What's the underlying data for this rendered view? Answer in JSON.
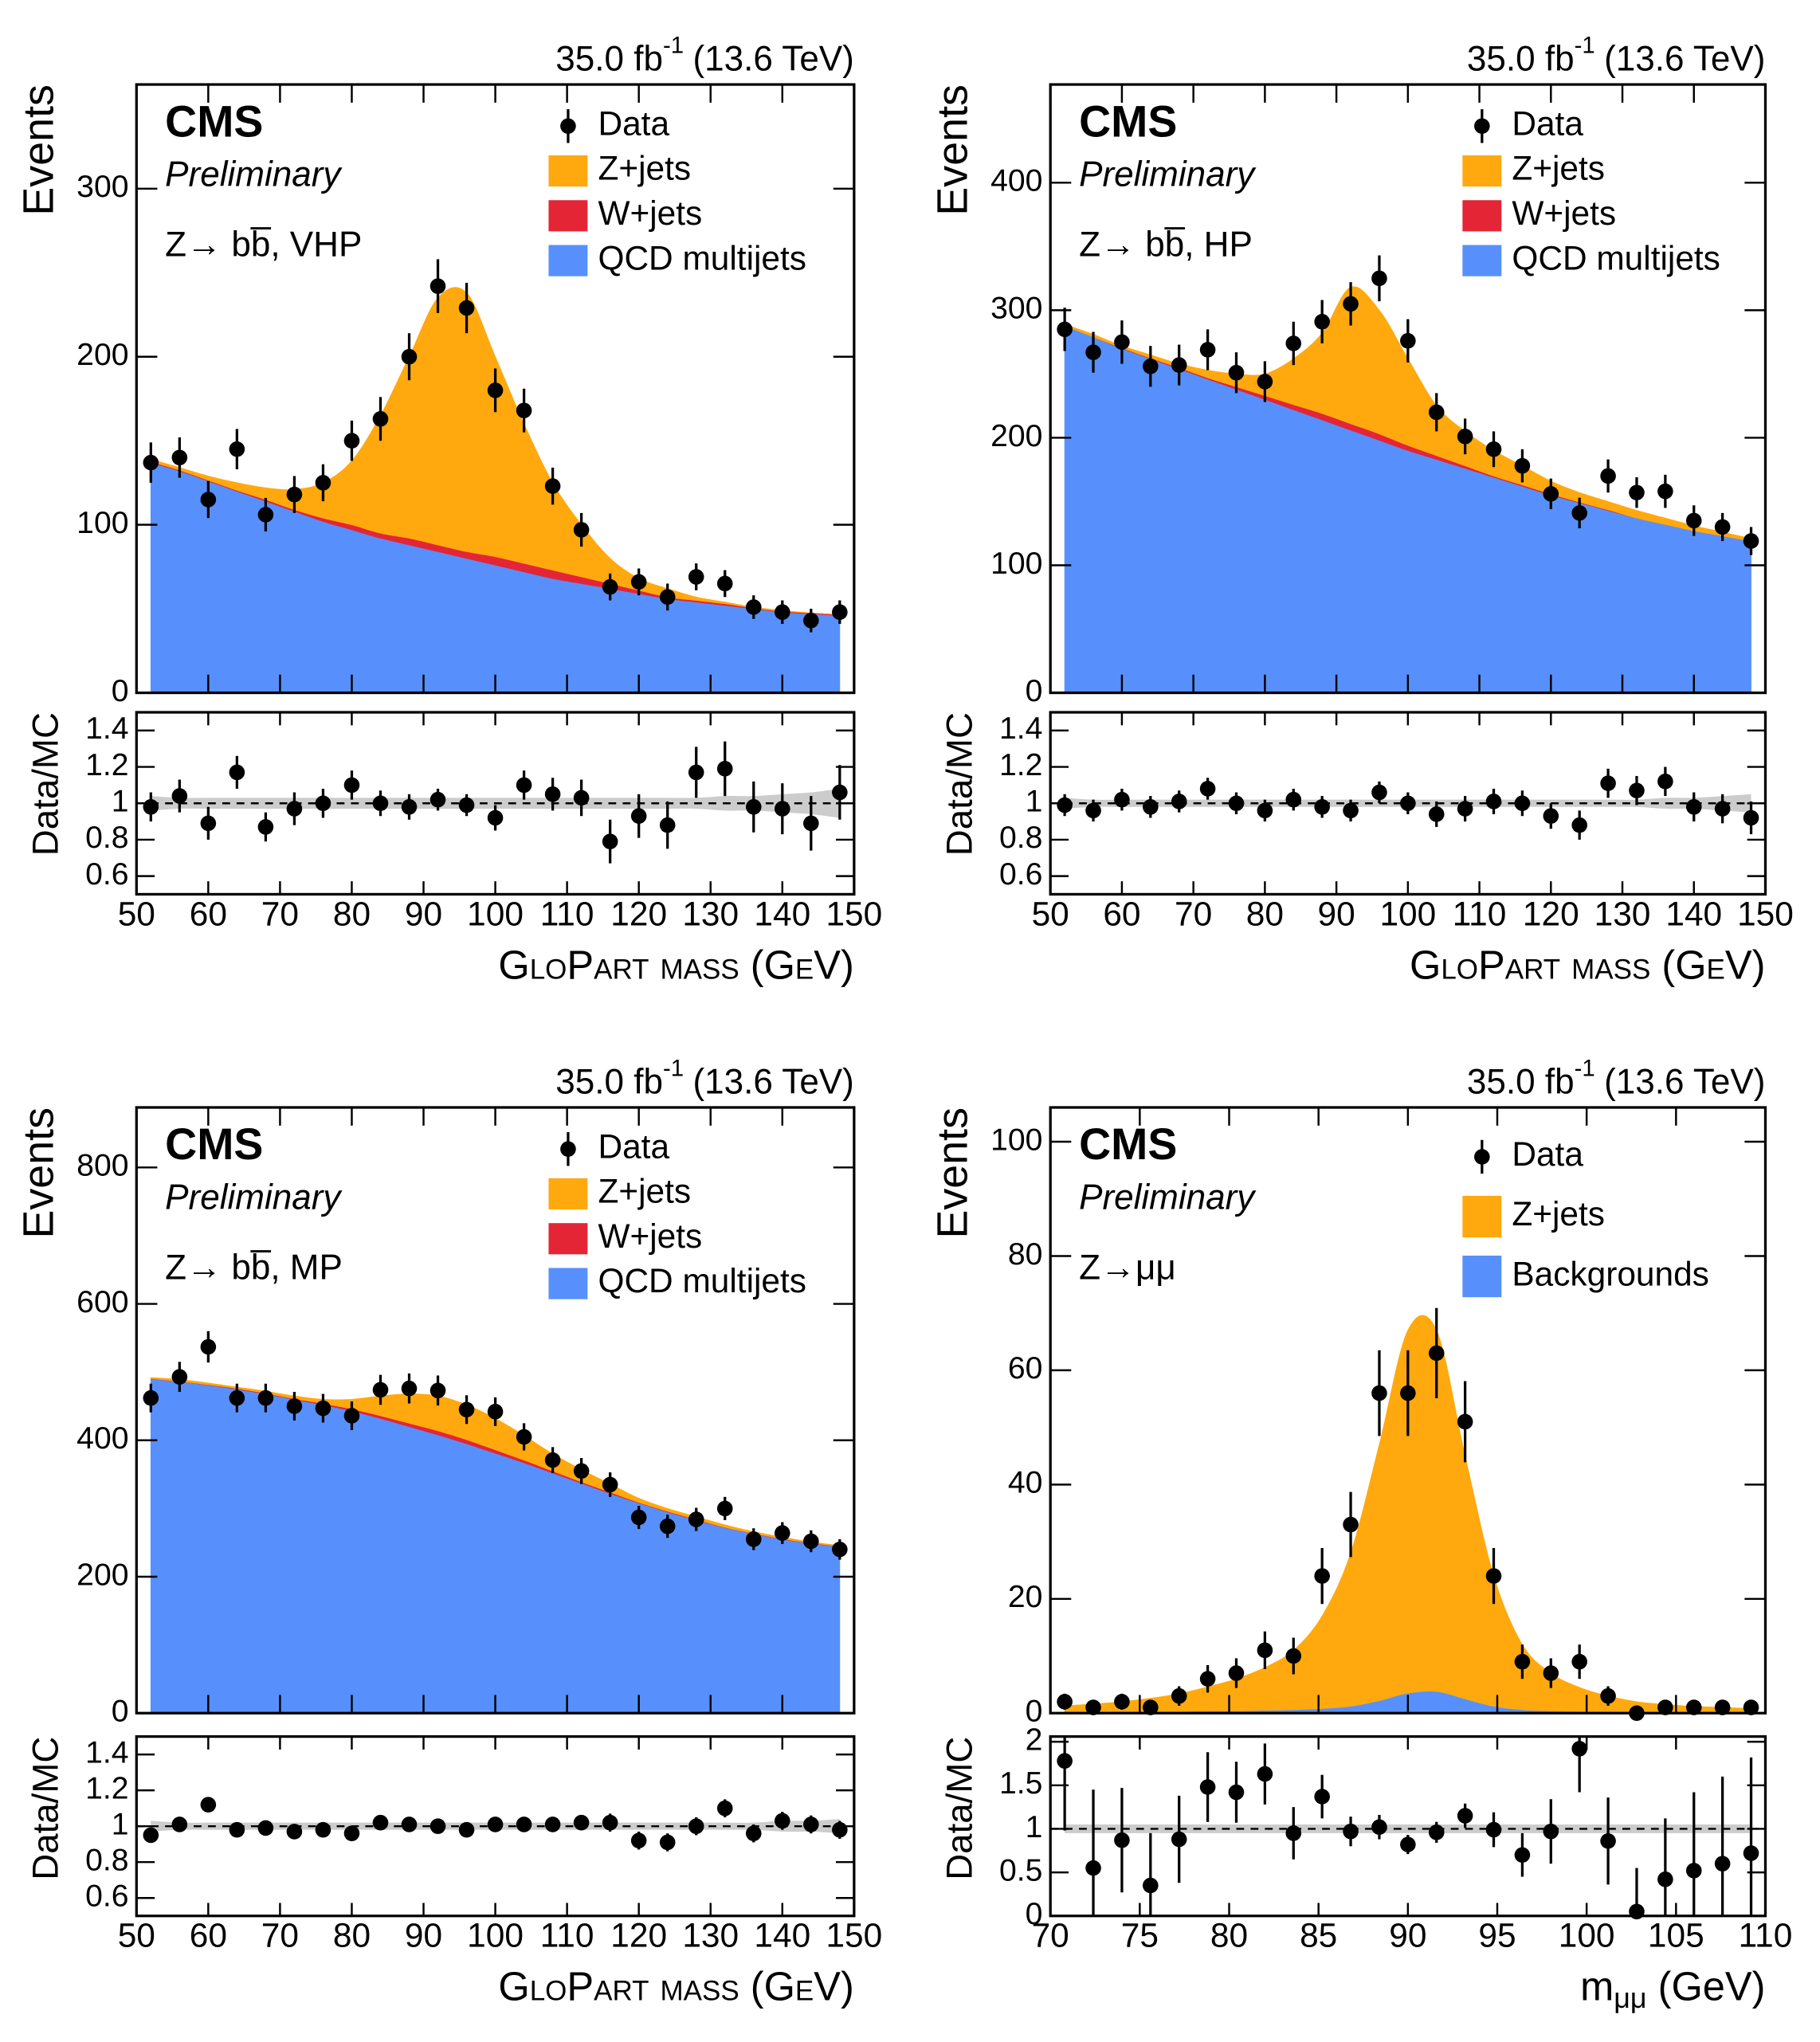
{
  "chart_data": [
    {
      "type": "stacked_area",
      "lumi": "35.0 fb",
      "lumi_sup": "-1",
      "energy": "(13.6 TeV)",
      "experiment": "CMS",
      "status": "Preliminary",
      "label": "Z→ bb̅, VHP",
      "ylabel": "Events",
      "xlabel": "GloPart mass (GeV)",
      "xlim": [
        50,
        150
      ],
      "xticks": [
        50,
        60,
        70,
        80,
        90,
        100,
        110,
        120,
        130,
        140,
        150
      ],
      "ylim": [
        0,
        362
      ],
      "yticks": [
        0,
        100,
        200,
        300
      ],
      "data": {
        "name": "Data",
        "color": "#000000",
        "x": [
          52,
          56,
          60,
          64,
          68,
          72,
          76,
          80,
          84,
          88,
          92,
          96,
          100,
          104,
          108,
          112,
          116,
          120,
          124,
          128,
          132,
          136,
          140,
          144,
          148
        ],
        "values": [
          137,
          140,
          115,
          145,
          106,
          118,
          125,
          150,
          163,
          200,
          242,
          229,
          180,
          168,
          123,
          97,
          63,
          66,
          57,
          69,
          65,
          51,
          48,
          43,
          48
        ],
        "errors": [
          12,
          12,
          11,
          12,
          10,
          11,
          11,
          12,
          13,
          14,
          16,
          15,
          13,
          13,
          11,
          10,
          8,
          8,
          8,
          8,
          8,
          7,
          7,
          7,
          7
        ]
      },
      "series": [
        {
          "name": "QCD multijets",
          "color": "#5790fc",
          "values": [
            137,
            132,
            126,
            120,
            114,
            108,
            102,
            97,
            92,
            88,
            84,
            80,
            76,
            72,
            68,
            65,
            62,
            59,
            56,
            54,
            52,
            50,
            48,
            47,
            46
          ]
        },
        {
          "name": "W+jets",
          "color": "#e42536",
          "values": [
            0.5,
            0.5,
            0.5,
            0.5,
            1,
            1,
            2,
            3,
            3,
            4,
            4,
            4,
            5,
            5,
            5,
            4,
            3,
            2,
            1,
            1,
            1,
            0.5,
            0.5,
            0.5,
            0.5
          ]
        },
        {
          "name": "Z+jets",
          "color": "#ffa90e",
          "values": [
            1.5,
            1.5,
            2.5,
            4.5,
            7,
            12,
            21,
            38,
            70,
            108,
            147,
            154,
            119,
            83,
            52,
            31,
            15,
            7,
            5,
            2,
            1,
            0.5,
            0.5,
            0,
            0
          ]
        }
      ],
      "ratio": {
        "ylabel": "Data/MC",
        "ylim": [
          0.5,
          1.5
        ],
        "yticks": [
          0.6,
          0.8,
          1,
          1.2,
          1.4
        ],
        "reference": 1,
        "band_color": "#cccccc",
        "values": [
          0.98,
          1.04,
          0.89,
          1.17,
          0.87,
          0.97,
          1.0,
          1.1,
          1.0,
          0.98,
          1.02,
          0.99,
          0.92,
          1.1,
          1.05,
          1.03,
          0.79,
          0.93,
          0.88,
          1.17,
          1.19,
          0.98,
          0.97,
          0.89,
          1.06
        ],
        "errors": [
          0.08,
          0.09,
          0.09,
          0.09,
          0.08,
          0.09,
          0.08,
          0.08,
          0.07,
          0.07,
          0.06,
          0.06,
          0.07,
          0.08,
          0.09,
          0.1,
          0.12,
          0.12,
          0.13,
          0.14,
          0.15,
          0.14,
          0.14,
          0.15,
          0.15
        ],
        "band": [
          0.04,
          0.03,
          0.03,
          0.03,
          0.03,
          0.03,
          0.03,
          0.03,
          0.03,
          0.03,
          0.03,
          0.03,
          0.03,
          0.03,
          0.03,
          0.03,
          0.03,
          0.03,
          0.03,
          0.03,
          0.04,
          0.04,
          0.05,
          0.06,
          0.08
        ]
      }
    },
    {
      "type": "stacked_area",
      "lumi": "35.0 fb",
      "lumi_sup": "-1",
      "energy": "(13.6 TeV)",
      "experiment": "CMS",
      "status": "Preliminary",
      "label": "Z→ bb̅, HP",
      "ylabel": "Events",
      "xlabel": "GloPart mass (GeV)",
      "xlim": [
        50,
        150
      ],
      "xticks": [
        50,
        60,
        70,
        80,
        90,
        100,
        110,
        120,
        130,
        140,
        150
      ],
      "ylim": [
        0,
        477
      ],
      "yticks": [
        0,
        100,
        200,
        300,
        400
      ],
      "data": {
        "name": "Data",
        "color": "#000000",
        "x": [
          52,
          56,
          60,
          64,
          68,
          72,
          76,
          80,
          84,
          88,
          92,
          96,
          100,
          104,
          108,
          112,
          116,
          120,
          124,
          128,
          132,
          136,
          140,
          144,
          148
        ],
        "values": [
          285,
          267,
          275,
          256,
          257,
          269,
          251,
          244,
          274,
          291,
          305,
          325,
          276,
          220,
          201,
          191,
          178,
          156,
          141,
          170,
          157,
          158,
          135,
          130,
          119
        ],
        "errors": [
          17,
          16,
          17,
          16,
          16,
          16,
          16,
          16,
          17,
          17,
          17,
          18,
          17,
          15,
          14,
          14,
          13,
          12,
          12,
          13,
          12,
          13,
          12,
          11,
          11
        ]
      },
      "series": [
        {
          "name": "QCD multijets",
          "color": "#5790fc",
          "values": [
            288,
            279,
            270,
            262,
            254,
            246,
            238,
            230,
            222,
            214,
            206,
            198,
            190,
            183,
            176,
            169,
            162,
            155,
            149,
            143,
            137,
            132,
            127,
            123,
            119
          ]
        },
        {
          "name": "W+jets",
          "color": "#e42536",
          "values": [
            0,
            0,
            0.5,
            0.5,
            1,
            1,
            2,
            3,
            4,
            5,
            5,
            5,
            4,
            3,
            2,
            1,
            1,
            1,
            0.5,
            0.5,
            0,
            0,
            0,
            0,
            0
          ]
        },
        {
          "name": "Z+jets",
          "color": "#ffa90e",
          "values": [
            1,
            2,
            1.5,
            2.5,
            3,
            6,
            10,
            17,
            36,
            63,
            107,
            97,
            68,
            39,
            27,
            20,
            15,
            10,
            7.5,
            6.5,
            6,
            5,
            4,
            3,
            2
          ]
        }
      ],
      "ratio": {
        "ylabel": "Data/MC",
        "ylim": [
          0.5,
          1.5
        ],
        "yticks": [
          0.6,
          0.8,
          1,
          1.2,
          1.4
        ],
        "reference": 1,
        "band_color": "#cccccc",
        "values": [
          0.99,
          0.96,
          1.02,
          0.98,
          1.01,
          1.08,
          1.0,
          0.96,
          1.02,
          0.98,
          0.96,
          1.06,
          1.0,
          0.94,
          0.97,
          1.01,
          1.0,
          0.93,
          0.88,
          1.11,
          1.07,
          1.12,
          0.98,
          0.97,
          0.92
        ],
        "errors": [
          0.06,
          0.06,
          0.06,
          0.06,
          0.06,
          0.06,
          0.06,
          0.06,
          0.06,
          0.06,
          0.06,
          0.06,
          0.06,
          0.07,
          0.07,
          0.07,
          0.07,
          0.07,
          0.08,
          0.08,
          0.08,
          0.08,
          0.08,
          0.08,
          0.09
        ],
        "band": [
          0.03,
          0.02,
          0.02,
          0.02,
          0.02,
          0.02,
          0.02,
          0.02,
          0.02,
          0.02,
          0.02,
          0.02,
          0.02,
          0.02,
          0.02,
          0.02,
          0.02,
          0.02,
          0.02,
          0.02,
          0.02,
          0.03,
          0.03,
          0.04,
          0.05
        ]
      }
    },
    {
      "type": "stacked_area",
      "lumi": "35.0 fb",
      "lumi_sup": "-1",
      "energy": "(13.6 TeV)",
      "experiment": "CMS",
      "status": "Preliminary",
      "label": "Z→ bb̅, MP",
      "ylabel": "Events",
      "xlabel": "GloPart mass (GeV)",
      "xlim": [
        50,
        150
      ],
      "xticks": [
        50,
        60,
        70,
        80,
        90,
        100,
        110,
        120,
        130,
        140,
        150
      ],
      "ylim": [
        0,
        888
      ],
      "yticks": [
        0,
        200,
        400,
        600,
        800
      ],
      "data": {
        "name": "Data",
        "color": "#000000",
        "x": [
          52,
          56,
          60,
          64,
          68,
          72,
          76,
          80,
          84,
          88,
          92,
          96,
          100,
          104,
          108,
          112,
          116,
          120,
          124,
          128,
          132,
          136,
          140,
          144,
          148
        ],
        "values": [
          462,
          493,
          537,
          462,
          462,
          450,
          447,
          436,
          474,
          476,
          473,
          445,
          442,
          405,
          371,
          355,
          335,
          287,
          274,
          284,
          300,
          255,
          264,
          252,
          240
        ],
        "errors": [
          21,
          22,
          23,
          21,
          21,
          21,
          21,
          21,
          22,
          22,
          22,
          21,
          21,
          20,
          19,
          19,
          18,
          17,
          17,
          17,
          17,
          16,
          16,
          16,
          15
        ]
      },
      "series": [
        {
          "name": "QCD multijets",
          "color": "#5790fc",
          "values": [
            490,
            486,
            481,
            475,
            468,
            460,
            452,
            443,
            432,
            420,
            408,
            395,
            381,
            367,
            352,
            337,
            322,
            308,
            295,
            283,
            272,
            263,
            255,
            249,
            244
          ]
        },
        {
          "name": "W+jets",
          "color": "#e42536",
          "values": [
            0.5,
            0.5,
            0.5,
            1,
            1,
            1,
            2,
            3,
            4,
            5,
            6,
            6,
            5,
            4,
            3,
            2,
            2,
            1,
            1,
            1,
            0.5,
            0.5,
            0.5,
            0.5,
            0.5
          ]
        },
        {
          "name": "Z+jets",
          "color": "#ffa90e",
          "values": [
            1.5,
            2.5,
            2.5,
            2,
            3,
            4,
            6,
            14,
            29,
            43,
            51,
            51,
            46,
            36,
            25,
            18,
            12,
            6,
            4,
            4,
            3.5,
            2.5,
            2.5,
            1.5,
            1.5
          ]
        }
      ],
      "ratio": {
        "ylabel": "Data/MC",
        "ylim": [
          0.5,
          1.5
        ],
        "yticks": [
          0.6,
          0.8,
          1,
          1.2,
          1.4
        ],
        "reference": 1,
        "band_color": "#cccccc",
        "values": [
          0.95,
          1.01,
          1.12,
          0.98,
          0.99,
          0.97,
          0.98,
          0.96,
          1.02,
          1.01,
          1.0,
          0.98,
          1.01,
          1.01,
          1.01,
          1.02,
          1.02,
          0.92,
          0.91,
          1.0,
          1.1,
          0.96,
          1.03,
          1.01,
          0.98
        ],
        "errors": [
          0.04,
          0.04,
          0.04,
          0.04,
          0.04,
          0.04,
          0.04,
          0.04,
          0.04,
          0.04,
          0.04,
          0.04,
          0.04,
          0.04,
          0.04,
          0.04,
          0.05,
          0.05,
          0.05,
          0.05,
          0.05,
          0.05,
          0.05,
          0.05,
          0.05
        ],
        "band": [
          0.03,
          0.02,
          0.02,
          0.02,
          0.02,
          0.02,
          0.02,
          0.02,
          0.02,
          0.02,
          0.02,
          0.02,
          0.02,
          0.02,
          0.02,
          0.02,
          0.02,
          0.02,
          0.02,
          0.02,
          0.02,
          0.02,
          0.03,
          0.03,
          0.04
        ]
      }
    },
    {
      "type": "stacked_area",
      "lumi": "35.0 fb",
      "lumi_sup": "-1",
      "energy": "(13.6 TeV)",
      "experiment": "CMS",
      "status": "Preliminary",
      "label": "Z→μμ",
      "ylabel": "Events",
      "xlabel": "m",
      "xlabel_sub": "μμ",
      "xlabel_tail": " (GeV)",
      "xlim": [
        70,
        110
      ],
      "xticks": [
        70,
        75,
        80,
        85,
        90,
        95,
        100,
        105,
        110
      ],
      "ylim": [
        0,
        106
      ],
      "yticks": [
        0,
        20,
        40,
        60,
        80,
        100
      ],
      "data": {
        "name": "Data",
        "color": "#000000",
        "x": [
          70.8,
          72.4,
          74,
          75.6,
          77.2,
          78.8,
          80.4,
          82,
          83.6,
          85.2,
          86.8,
          88.4,
          90,
          91.6,
          93.2,
          94.8,
          96.4,
          98,
          99.6,
          101.2,
          102.8,
          104.4,
          106,
          107.6,
          109.2
        ],
        "values": [
          2,
          1,
          2,
          1,
          3,
          6,
          7,
          11,
          10,
          24,
          33,
          56,
          56,
          63,
          51,
          24,
          9,
          7,
          9,
          3,
          0,
          1,
          1,
          1,
          1
        ],
        "errors": [
          1.4,
          1,
          1.4,
          1,
          1.7,
          2.4,
          2.6,
          3.3,
          3.2,
          4.9,
          5.7,
          7.5,
          7.5,
          7.9,
          7.1,
          4.9,
          3,
          2.6,
          3,
          1.7,
          0,
          1,
          1,
          1,
          1
        ]
      },
      "series": [
        {
          "name": "Backgrounds",
          "color": "#5790fc",
          "values": [
            0.2,
            0.2,
            0.3,
            0.3,
            0.3,
            0.4,
            0.4,
            0.5,
            0.6,
            0.8,
            1.2,
            2.2,
            3.5,
            3.8,
            2.5,
            1.2,
            0.6,
            0.4,
            0.3,
            0.3,
            0.2,
            0.2,
            0.2,
            0.2,
            0.2
          ]
        },
        {
          "name": "Z+jets",
          "color": "#ffa90e",
          "values": [
            1.1,
            1.4,
            1.7,
            2.3,
            3.1,
            4.2,
            5.6,
            7.5,
            10.4,
            16.2,
            26.8,
            44.8,
            63.5,
            63.2,
            42.5,
            22.8,
            11.4,
            6.6,
            4.2,
            2.7,
            1.8,
            1.3,
            1,
            0.8,
            0.6
          ]
        }
      ],
      "ratio": {
        "ylabel": "Data/MC",
        "ylim": [
          0,
          2.06
        ],
        "yticks": [
          0,
          0.5,
          1,
          1.5,
          2
        ],
        "reference": 1,
        "band_color": "#cccccc",
        "values": [
          1.78,
          0.55,
          0.87,
          0.35,
          0.88,
          1.48,
          1.42,
          1.63,
          0.95,
          1.37,
          0.97,
          1.02,
          0.82,
          0.96,
          1.15,
          0.99,
          0.7,
          0.97,
          1.92,
          0.86,
          0.05,
          0.42,
          0.52,
          0.6,
          0.72
        ],
        "errors": [
          0.8,
          0.9,
          0.6,
          0.6,
          0.5,
          0.4,
          0.35,
          0.35,
          0.3,
          0.25,
          0.17,
          0.14,
          0.11,
          0.12,
          0.14,
          0.2,
          0.25,
          0.37,
          0.5,
          0.5,
          0.5,
          0.7,
          0.9,
          1.0,
          1.1
        ],
        "band": [
          0.05,
          0.05,
          0.05,
          0.05,
          0.05,
          0.05,
          0.05,
          0.05,
          0.05,
          0.05,
          0.05,
          0.05,
          0.05,
          0.05,
          0.05,
          0.05,
          0.05,
          0.05,
          0.05,
          0.05,
          0.05,
          0.05,
          0.05,
          0.05,
          0.05
        ]
      }
    }
  ]
}
